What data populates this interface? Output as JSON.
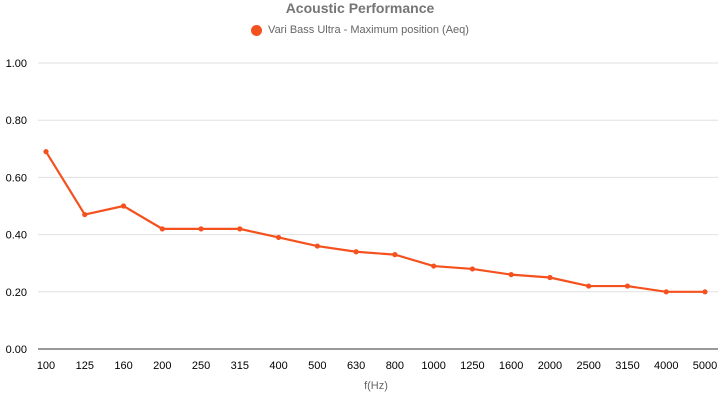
{
  "chart_data": {
    "type": "line",
    "title": "Acoustic Performance",
    "xlabel": "f(Hz)",
    "ylabel": "",
    "categories": [
      "100",
      "125",
      "160",
      "200",
      "250",
      "315",
      "400",
      "500",
      "630",
      "800",
      "1000",
      "1250",
      "1600",
      "2000",
      "2500",
      "3150",
      "4000",
      "5000"
    ],
    "series": [
      {
        "name": "Vari Bass Ultra - Maximum position (Aeq)",
        "color": "#f4511e",
        "values": [
          0.69,
          0.47,
          0.5,
          0.42,
          0.42,
          0.42,
          0.39,
          0.36,
          0.34,
          0.33,
          0.29,
          0.28,
          0.26,
          0.25,
          0.22,
          0.22,
          0.2,
          0.2
        ]
      }
    ],
    "ylim": [
      0,
      1
    ],
    "yticks": [
      "0.00",
      "0.20",
      "0.40",
      "0.60",
      "0.80",
      "1.00"
    ],
    "grid": true,
    "legend_position": "top"
  }
}
